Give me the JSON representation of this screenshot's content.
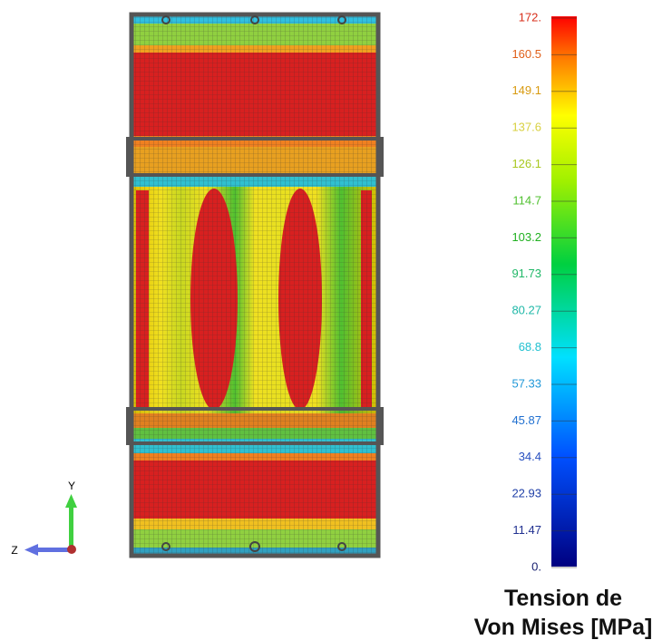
{
  "legend": {
    "labels": [
      {
        "text": "172.",
        "color": "#d8301c"
      },
      {
        "text": "160.5",
        "color": "#e0601a"
      },
      {
        "text": "149.1",
        "color": "#d89a10"
      },
      {
        "text": "137.6",
        "color": "#d8d040"
      },
      {
        "text": "126.1",
        "color": "#a8c820"
      },
      {
        "text": "114.7",
        "color": "#50c030"
      },
      {
        "text": "103.2",
        "color": "#20b020"
      },
      {
        "text": "91.73",
        "color": "#20b868"
      },
      {
        "text": "80.27",
        "color": "#20b8a8"
      },
      {
        "text": "68.8",
        "color": "#20c0d0"
      },
      {
        "text": "57.33",
        "color": "#2098d8"
      },
      {
        "text": "45.87",
        "color": "#2070d0"
      },
      {
        "text": "34.4",
        "color": "#2850c0"
      },
      {
        "text": "22.93",
        "color": "#2040a8"
      },
      {
        "text": "11.47",
        "color": "#203090"
      },
      {
        "text": "0.",
        "color": "#182070"
      }
    ],
    "title": [
      "Tension de",
      "Von Mises [MPa]"
    ]
  },
  "triad": {
    "y_label": "Y",
    "z_label": "Z"
  }
}
